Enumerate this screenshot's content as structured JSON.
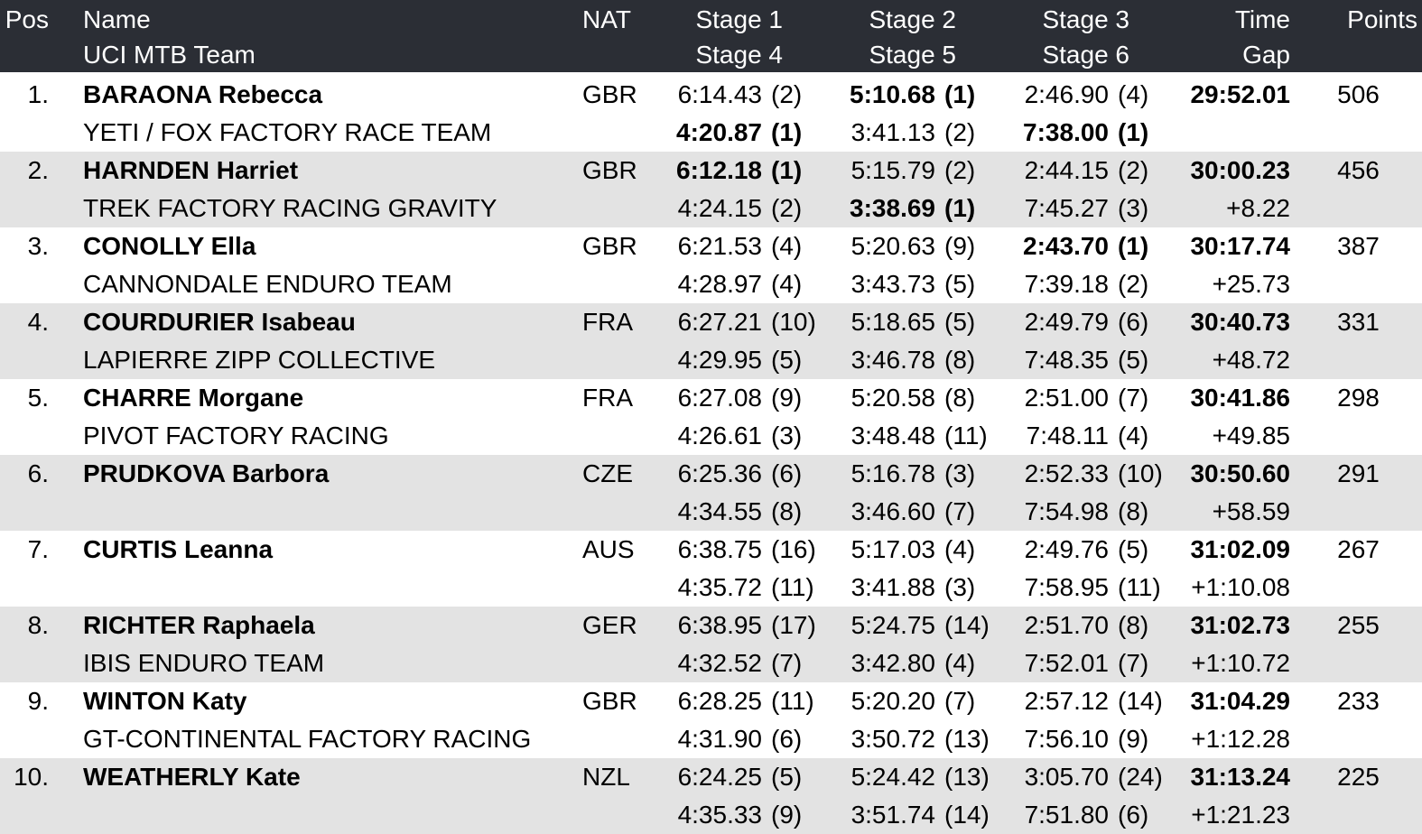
{
  "colors": {
    "header_bg": "#2b2e35",
    "header_text": "#ffffff",
    "row_bg": "#ffffff",
    "row_alt_bg": "#e3e3e3",
    "text": "#000000"
  },
  "table": {
    "header": {
      "pos": "Pos",
      "name": "Name",
      "team": "UCI MTB Team",
      "nat": "NAT",
      "stage1": "Stage 1",
      "stage2": "Stage 2",
      "stage3": "Stage 3",
      "stage4": "Stage 4",
      "stage5": "Stage 5",
      "stage6": "Stage 6",
      "time": "Time",
      "gap": "Gap",
      "points": "Points"
    },
    "rows": [
      {
        "pos": "1.",
        "name": "BARAONA Rebecca",
        "team": "YETI / FOX FACTORY RACE TEAM",
        "nat": "GBR",
        "s1": {
          "time": "6:14.43",
          "rank": "(2)",
          "style": ""
        },
        "s2": {
          "time": "5:10.68",
          "rank": "(1)",
          "style": "best"
        },
        "s3": {
          "time": "2:46.90",
          "rank": "(4)",
          "style": ""
        },
        "s4": {
          "time": "4:20.87",
          "rank": "(1)",
          "style": "best"
        },
        "s5": {
          "time": "3:41.13",
          "rank": "(2)",
          "style": ""
        },
        "s6": {
          "time": "7:38.00",
          "rank": "(1)",
          "style": "best"
        },
        "time": "29:52.01",
        "gap": "",
        "points": "506"
      },
      {
        "pos": "2.",
        "name": "HARNDEN Harriet",
        "team": "TREK FACTORY RACING GRAVITY",
        "nat": "GBR",
        "s1": {
          "time": "6:12.18",
          "rank": "(1)",
          "style": "best"
        },
        "s2": {
          "time": "5:15.79",
          "rank": "(2)",
          "style": ""
        },
        "s3": {
          "time": "2:44.15",
          "rank": "(2)",
          "style": ""
        },
        "s4": {
          "time": "4:24.15",
          "rank": "(2)",
          "style": ""
        },
        "s5": {
          "time": "3:38.69",
          "rank": "(1)",
          "style": "best"
        },
        "s6": {
          "time": "7:45.27",
          "rank": "(3)",
          "style": ""
        },
        "time": "30:00.23",
        "gap": "+8.22",
        "points": "456"
      },
      {
        "pos": "3.",
        "name": "CONOLLY Ella",
        "team": "CANNONDALE ENDURO TEAM",
        "nat": "GBR",
        "s1": {
          "time": "6:21.53",
          "rank": "(4)",
          "style": ""
        },
        "s2": {
          "time": "5:20.63",
          "rank": "(9)",
          "style": ""
        },
        "s3": {
          "time": "2:43.70",
          "rank": "(1)",
          "style": "best"
        },
        "s4": {
          "time": "4:28.97",
          "rank": "(4)",
          "style": ""
        },
        "s5": {
          "time": "3:43.73",
          "rank": "(5)",
          "style": ""
        },
        "s6": {
          "time": "7:39.18",
          "rank": "(2)",
          "style": ""
        },
        "time": "30:17.74",
        "gap": "+25.73",
        "points": "387"
      },
      {
        "pos": "4.",
        "name": "COURDURIER Isabeau",
        "team": "LAPIERRE ZIPP COLLECTIVE",
        "nat": "FRA",
        "s1": {
          "time": "6:27.21",
          "rank": "(10)",
          "style": ""
        },
        "s2": {
          "time": "5:18.65",
          "rank": "(5)",
          "style": ""
        },
        "s3": {
          "time": "2:49.79",
          "rank": "(6)",
          "style": ""
        },
        "s4": {
          "time": "4:29.95",
          "rank": "(5)",
          "style": ""
        },
        "s5": {
          "time": "3:46.78",
          "rank": "(8)",
          "style": ""
        },
        "s6": {
          "time": "7:48.35",
          "rank": "(5)",
          "style": ""
        },
        "time": "30:40.73",
        "gap": "+48.72",
        "points": "331"
      },
      {
        "pos": "5.",
        "name": "CHARRE Morgane",
        "team": "PIVOT FACTORY RACING",
        "nat": "FRA",
        "s1": {
          "time": "6:27.08",
          "rank": "(9)",
          "style": ""
        },
        "s2": {
          "time": "5:20.58",
          "rank": "(8)",
          "style": ""
        },
        "s3": {
          "time": "2:51.00",
          "rank": "(7)",
          "style": ""
        },
        "s4": {
          "time": "4:26.61",
          "rank": "(3)",
          "style": ""
        },
        "s5": {
          "time": "3:48.48",
          "rank": "(11)",
          "style": ""
        },
        "s6": {
          "time": "7:48.11",
          "rank": "(4)",
          "style": ""
        },
        "time": "30:41.86",
        "gap": "+49.85",
        "points": "298"
      },
      {
        "pos": "6.",
        "name": "PRUDKOVA Barbora",
        "team": "",
        "nat": "CZE",
        "s1": {
          "time": "6:25.36",
          "rank": "(6)",
          "style": ""
        },
        "s2": {
          "time": "5:16.78",
          "rank": "(3)",
          "style": ""
        },
        "s3": {
          "time": "2:52.33",
          "rank": "(10)",
          "style": ""
        },
        "s4": {
          "time": "4:34.55",
          "rank": "(8)",
          "style": ""
        },
        "s5": {
          "time": "3:46.60",
          "rank": "(7)",
          "style": ""
        },
        "s6": {
          "time": "7:54.98",
          "rank": "(8)",
          "style": ""
        },
        "time": "30:50.60",
        "gap": "+58.59",
        "points": "291"
      },
      {
        "pos": "7.",
        "name": "CURTIS Leanna",
        "team": "",
        "nat": "AUS",
        "s1": {
          "time": "6:38.75",
          "rank": "(16)",
          "style": ""
        },
        "s2": {
          "time": "5:17.03",
          "rank": "(4)",
          "style": ""
        },
        "s3": {
          "time": "2:49.76",
          "rank": "(5)",
          "style": ""
        },
        "s4": {
          "time": "4:35.72",
          "rank": "(11)",
          "style": ""
        },
        "s5": {
          "time": "3:41.88",
          "rank": "(3)",
          "style": ""
        },
        "s6": {
          "time": "7:58.95",
          "rank": "(11)",
          "style": ""
        },
        "time": "31:02.09",
        "gap": "+1:10.08",
        "points": "267"
      },
      {
        "pos": "8.",
        "name": "RICHTER Raphaela",
        "team": "IBIS ENDURO TEAM",
        "nat": "GER",
        "s1": {
          "time": "6:38.95",
          "rank": "(17)",
          "style": ""
        },
        "s2": {
          "time": "5:24.75",
          "rank": "(14)",
          "style": ""
        },
        "s3": {
          "time": "2:51.70",
          "rank": "(8)",
          "style": ""
        },
        "s4": {
          "time": "4:32.52",
          "rank": "(7)",
          "style": ""
        },
        "s5": {
          "time": "3:42.80",
          "rank": "(4)",
          "style": ""
        },
        "s6": {
          "time": "7:52.01",
          "rank": "(7)",
          "style": ""
        },
        "time": "31:02.73",
        "gap": "+1:10.72",
        "points": "255"
      },
      {
        "pos": "9.",
        "name": "WINTON Katy",
        "team": "GT-CONTINENTAL FACTORY RACING",
        "nat": "GBR",
        "s1": {
          "time": "6:28.25",
          "rank": "(11)",
          "style": ""
        },
        "s2": {
          "time": "5:20.20",
          "rank": "(7)",
          "style": ""
        },
        "s3": {
          "time": "2:57.12",
          "rank": "(14)",
          "style": ""
        },
        "s4": {
          "time": "4:31.90",
          "rank": "(6)",
          "style": ""
        },
        "s5": {
          "time": "3:50.72",
          "rank": "(13)",
          "style": ""
        },
        "s6": {
          "time": "7:56.10",
          "rank": "(9)",
          "style": ""
        },
        "time": "31:04.29",
        "gap": "+1:12.28",
        "points": "233"
      },
      {
        "pos": "10.",
        "name": "WEATHERLY Kate",
        "team": "",
        "nat": "NZL",
        "s1": {
          "time": "6:24.25",
          "rank": "(5)",
          "style": ""
        },
        "s2": {
          "time": "5:24.42",
          "rank": "(13)",
          "style": ""
        },
        "s3": {
          "time": "3:05.70",
          "rank": "(24)",
          "style": ""
        },
        "s4": {
          "time": "4:35.33",
          "rank": "(9)",
          "style": ""
        },
        "s5": {
          "time": "3:51.74",
          "rank": "(14)",
          "style": ""
        },
        "s6": {
          "time": "7:51.80",
          "rank": "(6)",
          "style": ""
        },
        "time": "31:13.24",
        "gap": "+1:21.23",
        "points": "225"
      }
    ]
  }
}
